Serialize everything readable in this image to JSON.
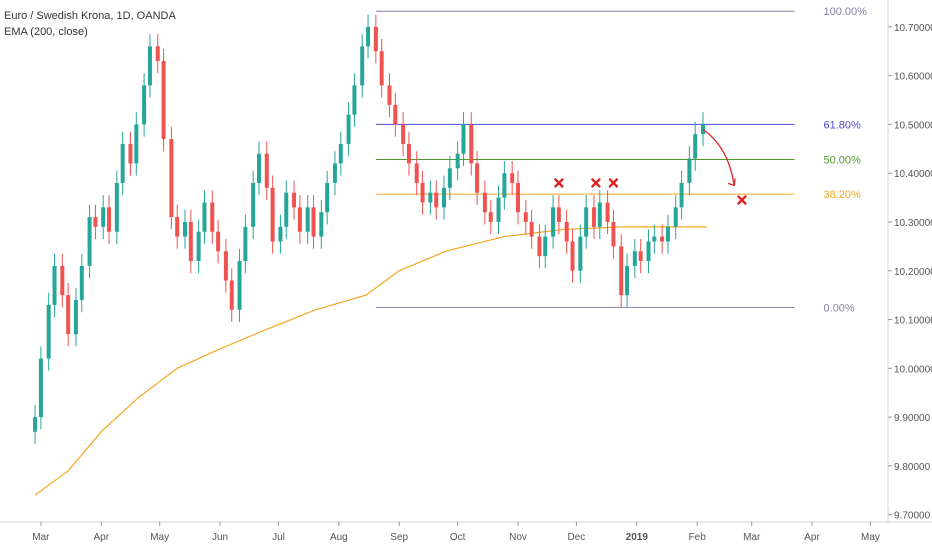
{
  "legend": {
    "symbol": "Euro / Swedish Krona, 1D, OANDA",
    "indicator": "EMA (200, close)"
  },
  "colors": {
    "up": "#26a69a",
    "down": "#ef5350",
    "ema": "#f5a623",
    "fib_100": "#8a7fa8",
    "fib_618": "#4a4ad0",
    "fib_50": "#4f9a2f",
    "fib_382": "#f5a623",
    "fib_0": "#8a7fa8",
    "annotation": "#e02020"
  },
  "chart_data": {
    "type": "candlestick",
    "title": "",
    "xlabel": "",
    "ylabel": "",
    "x_tick_labels": [
      "Mar",
      "Apr",
      "May",
      "Jun",
      "Jul",
      "Aug",
      "Sep",
      "Oct",
      "Nov",
      "Dec",
      "2019",
      "Feb",
      "Mar",
      "Apr",
      "May"
    ],
    "y_tick_labels": [
      "10.70000",
      "10.60000",
      "10.50000",
      "10.40000",
      "10.30000",
      "10.20000",
      "10.10000",
      "10.00000",
      "9.90000",
      "9.80000",
      "9.70000"
    ],
    "ylim": [
      9.685,
      10.755
    ],
    "grid": false,
    "ohlc": [
      {
        "date": "2018-02-26",
        "close": 9.9
      },
      {
        "date": "2018-03-01",
        "close": 10.02
      },
      {
        "date": "2018-03-05",
        "close": 10.13
      },
      {
        "date": "2018-03-08",
        "close": 10.21
      },
      {
        "date": "2018-03-12",
        "close": 10.15
      },
      {
        "date": "2018-03-15",
        "close": 10.07
      },
      {
        "date": "2018-03-19",
        "close": 10.14
      },
      {
        "date": "2018-03-22",
        "close": 10.21
      },
      {
        "date": "2018-03-26",
        "close": 10.31
      },
      {
        "date": "2018-03-29",
        "close": 10.29
      },
      {
        "date": "2018-04-02",
        "close": 10.33
      },
      {
        "date": "2018-04-05",
        "close": 10.28
      },
      {
        "date": "2018-04-09",
        "close": 10.38
      },
      {
        "date": "2018-04-12",
        "close": 10.46
      },
      {
        "date": "2018-04-16",
        "close": 10.42
      },
      {
        "date": "2018-04-19",
        "close": 10.5
      },
      {
        "date": "2018-04-23",
        "close": 10.58
      },
      {
        "date": "2018-04-26",
        "close": 10.66
      },
      {
        "date": "2018-04-30",
        "close": 10.63
      },
      {
        "date": "2018-05-03",
        "close": 10.47
      },
      {
        "date": "2018-05-07",
        "close": 10.31
      },
      {
        "date": "2018-05-10",
        "close": 10.27
      },
      {
        "date": "2018-05-14",
        "close": 10.3
      },
      {
        "date": "2018-05-17",
        "close": 10.22
      },
      {
        "date": "2018-05-21",
        "close": 10.28
      },
      {
        "date": "2018-05-24",
        "close": 10.34
      },
      {
        "date": "2018-05-28",
        "close": 10.28
      },
      {
        "date": "2018-05-31",
        "close": 10.24
      },
      {
        "date": "2018-06-04",
        "close": 10.18
      },
      {
        "date": "2018-06-07",
        "close": 10.12
      },
      {
        "date": "2018-06-11",
        "close": 10.22
      },
      {
        "date": "2018-06-14",
        "close": 10.29
      },
      {
        "date": "2018-06-18",
        "close": 10.38
      },
      {
        "date": "2018-06-21",
        "close": 10.44
      },
      {
        "date": "2018-06-25",
        "close": 10.37
      },
      {
        "date": "2018-06-28",
        "close": 10.26
      },
      {
        "date": "2018-07-02",
        "close": 10.29
      },
      {
        "date": "2018-07-05",
        "close": 10.36
      },
      {
        "date": "2018-07-09",
        "close": 10.33
      },
      {
        "date": "2018-07-12",
        "close": 10.28
      },
      {
        "date": "2018-07-16",
        "close": 10.33
      },
      {
        "date": "2018-07-19",
        "close": 10.27
      },
      {
        "date": "2018-07-23",
        "close": 10.32
      },
      {
        "date": "2018-07-26",
        "close": 10.38
      },
      {
        "date": "2018-07-30",
        "close": 10.42
      },
      {
        "date": "2018-08-02",
        "close": 10.46
      },
      {
        "date": "2018-08-06",
        "close": 10.52
      },
      {
        "date": "2018-08-09",
        "close": 10.58
      },
      {
        "date": "2018-08-13",
        "close": 10.66
      },
      {
        "date": "2018-08-16",
        "close": 10.7
      },
      {
        "date": "2018-08-20",
        "close": 10.65
      },
      {
        "date": "2018-08-23",
        "close": 10.58
      },
      {
        "date": "2018-08-27",
        "close": 10.54
      },
      {
        "date": "2018-08-30",
        "close": 10.5
      },
      {
        "date": "2018-09-03",
        "close": 10.46
      },
      {
        "date": "2018-09-06",
        "close": 10.42
      },
      {
        "date": "2018-09-10",
        "close": 10.38
      },
      {
        "date": "2018-09-13",
        "close": 10.34
      },
      {
        "date": "2018-09-17",
        "close": 10.36
      },
      {
        "date": "2018-09-20",
        "close": 10.33
      },
      {
        "date": "2018-09-24",
        "close": 10.37
      },
      {
        "date": "2018-09-27",
        "close": 10.41
      },
      {
        "date": "2018-10-01",
        "close": 10.44
      },
      {
        "date": "2018-10-04",
        "close": 10.5
      },
      {
        "date": "2018-10-08",
        "close": 10.42
      },
      {
        "date": "2018-10-11",
        "close": 10.36
      },
      {
        "date": "2018-10-15",
        "close": 10.32
      },
      {
        "date": "2018-10-18",
        "close": 10.3
      },
      {
        "date": "2018-10-22",
        "close": 10.35
      },
      {
        "date": "2018-10-25",
        "close": 10.4
      },
      {
        "date": "2018-10-29",
        "close": 10.38
      },
      {
        "date": "2018-11-01",
        "close": 10.32
      },
      {
        "date": "2018-11-05",
        "close": 10.3
      },
      {
        "date": "2018-11-08",
        "close": 10.27
      },
      {
        "date": "2018-11-12",
        "close": 10.23
      },
      {
        "date": "2018-11-15",
        "close": 10.27
      },
      {
        "date": "2018-11-19",
        "close": 10.33
      },
      {
        "date": "2018-11-22",
        "close": 10.3
      },
      {
        "date": "2018-11-26",
        "close": 10.26
      },
      {
        "date": "2018-11-29",
        "close": 10.2
      },
      {
        "date": "2018-12-03",
        "close": 10.27
      },
      {
        "date": "2018-12-06",
        "close": 10.33
      },
      {
        "date": "2018-12-10",
        "close": 10.29
      },
      {
        "date": "2018-12-13",
        "close": 10.34
      },
      {
        "date": "2018-12-17",
        "close": 10.3
      },
      {
        "date": "2018-12-20",
        "close": 10.25
      },
      {
        "date": "2018-12-24",
        "close": 10.15
      },
      {
        "date": "2018-12-27",
        "close": 10.21
      },
      {
        "date": "2018-12-31",
        "close": 10.24
      },
      {
        "date": "2019-01-03",
        "close": 10.22
      },
      {
        "date": "2019-01-07",
        "close": 10.26
      },
      {
        "date": "2019-01-10",
        "close": 10.27
      },
      {
        "date": "2019-01-14",
        "close": 10.26
      },
      {
        "date": "2019-01-17",
        "close": 10.29
      },
      {
        "date": "2019-01-21",
        "close": 10.33
      },
      {
        "date": "2019-01-24",
        "close": 10.38
      },
      {
        "date": "2019-01-28",
        "close": 10.43
      },
      {
        "date": "2019-01-31",
        "close": 10.48
      },
      {
        "date": "2019-02-04",
        "close": 10.5
      }
    ],
    "ema_200": [
      {
        "date": "2018-02-26",
        "value": 9.74
      },
      {
        "date": "2018-03-15",
        "value": 9.79
      },
      {
        "date": "2018-04-01",
        "value": 9.87
      },
      {
        "date": "2018-04-20",
        "value": 9.94
      },
      {
        "date": "2018-05-10",
        "value": 10.0
      },
      {
        "date": "2018-06-01",
        "value": 10.04
      },
      {
        "date": "2018-06-25",
        "value": 10.08
      },
      {
        "date": "2018-07-20",
        "value": 10.12
      },
      {
        "date": "2018-08-15",
        "value": 10.15
      },
      {
        "date": "2018-09-01",
        "value": 10.2
      },
      {
        "date": "2018-09-25",
        "value": 10.24
      },
      {
        "date": "2018-10-25",
        "value": 10.27
      },
      {
        "date": "2018-11-25",
        "value": 10.285
      },
      {
        "date": "2018-12-25",
        "value": 10.29
      },
      {
        "date": "2019-01-15",
        "value": 10.29
      },
      {
        "date": "2019-02-06",
        "value": 10.29
      }
    ],
    "fibonacci": [
      {
        "label": "100.00%",
        "price": 10.732,
        "color_key": "fib_100"
      },
      {
        "label": "61.80%",
        "price": 10.5,
        "color_key": "fib_618"
      },
      {
        "label": "50.00%",
        "price": 10.428,
        "color_key": "fib_50"
      },
      {
        "label": "38.20%",
        "price": 10.357,
        "color_key": "fib_382"
      },
      {
        "label": "0.00%",
        "price": 10.125,
        "color_key": "fib_0"
      }
    ],
    "fib_range": {
      "start": "2018-08-20",
      "end": "2019-03-23"
    },
    "annotations": {
      "x_marks": [
        {
          "date": "2018-11-22",
          "price": 10.38
        },
        {
          "date": "2018-12-11",
          "price": 10.38
        },
        {
          "date": "2018-12-20",
          "price": 10.38
        },
        {
          "date": "2019-02-24",
          "price": 10.345
        }
      ],
      "arrow": {
        "from_date": "2019-02-04",
        "from_price": 10.49,
        "to_date": "2019-02-20",
        "to_price": 10.375
      }
    }
  }
}
